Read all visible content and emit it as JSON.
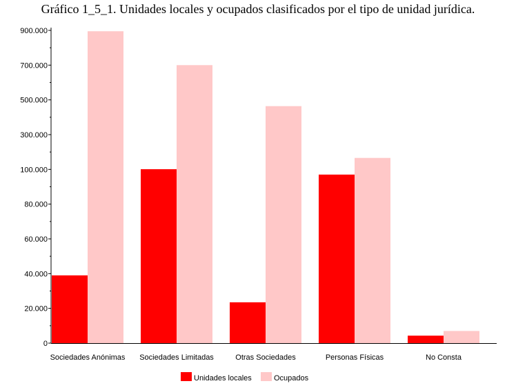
{
  "title": "Gráfico 1_5_1. Unidades locales y ocupados clasificados por el tipo de unidad jurídica.",
  "chart_data": {
    "type": "bar",
    "title": "Gráfico 1_5_1. Unidades locales y ocupados clasificados por el tipo de unidad jurídica.",
    "xlabel": "",
    "ylabel": "",
    "y_scale": "piecewise-linear (0–100.000 and 100.000–900.000 share equal tick spacing)",
    "ylim": [
      0,
      900000
    ],
    "y_ticks": [
      0,
      20000,
      40000,
      60000,
      80000,
      100000,
      300000,
      500000,
      700000,
      900000
    ],
    "y_tick_labels": [
      "0",
      "20.000",
      "40.000",
      "60.000",
      "80.000",
      "100.000",
      "300.000",
      "500.000",
      "700.000",
      "900.000"
    ],
    "grid": true,
    "legend_position": "bottom",
    "categories": [
      "Sociedades Anónimas",
      "Sociedades Limitadas",
      "Otras Sociedades",
      "Personas Físicas",
      "No Consta"
    ],
    "series": [
      {
        "name": "Unidades locales",
        "color": "#ff0000",
        "values": [
          39000,
          101000,
          23500,
          97000,
          4300
        ]
      },
      {
        "name": "Ocupados",
        "color": "#ffc8c8",
        "values": [
          895000,
          700000,
          464000,
          166000,
          7000
        ]
      }
    ]
  }
}
